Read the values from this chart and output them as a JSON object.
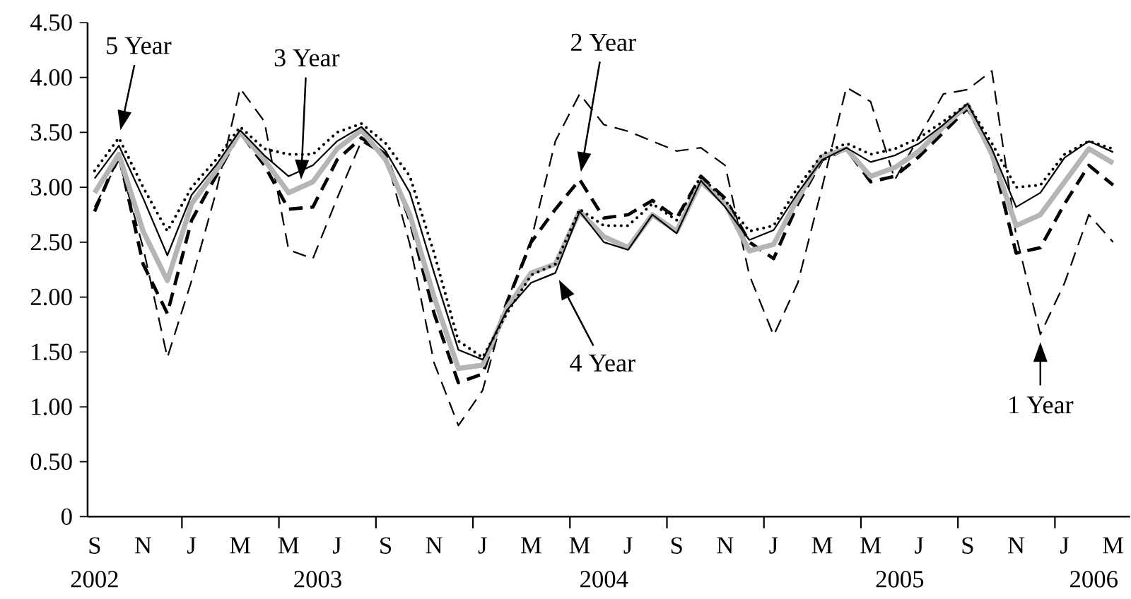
{
  "chart_data": {
    "type": "line",
    "categories": [
      "S",
      null,
      "N",
      null,
      "J",
      null,
      "M",
      null,
      "M",
      null,
      "J",
      null,
      "S",
      null,
      "N",
      null,
      "J",
      null,
      "M",
      null,
      "M",
      null,
      "J",
      null,
      "S",
      null,
      "N",
      null,
      "J",
      null,
      "M",
      null,
      "M",
      null,
      "J",
      null,
      "S",
      null,
      "N",
      null,
      "J",
      null,
      "M"
    ],
    "annotations": [
      "2002",
      "2003",
      "2004",
      "2005",
      "2006",
      "1 Year",
      "2 Year",
      "3 Year",
      "4 Year",
      "5 Year"
    ],
    "series": [
      {
        "color": "#000000",
        "line_style": "dashed",
        "values": [
          2.82,
          3.25,
          2.45,
          1.45,
          2.15,
          2.95,
          3.9,
          3.6,
          2.43,
          2.35,
          2.9,
          3.42,
          3.29,
          2.48,
          1.4,
          0.83,
          1.15,
          1.96,
          2.52,
          3.42,
          3.85,
          3.57,
          3.51,
          3.42,
          3.33,
          3.36,
          3.2,
          2.2,
          1.65,
          2.13,
          3.0,
          3.91,
          3.78,
          3.07,
          3.46,
          3.85,
          3.89,
          4.06,
          2.56,
          1.66,
          2.13,
          2.75,
          2.5
        ]
      },
      {
        "color": "#000000",
        "line_style": "dashed",
        "values": [
          2.78,
          3.3,
          2.3,
          1.85,
          2.7,
          3.1,
          3.5,
          3.2,
          2.8,
          2.82,
          3.25,
          3.45,
          3.3,
          2.7,
          1.85,
          1.22,
          1.3,
          1.95,
          2.5,
          2.8,
          3.07,
          2.72,
          2.75,
          2.88,
          2.72,
          3.1,
          2.9,
          2.5,
          2.35,
          2.85,
          3.25,
          3.35,
          3.05,
          3.1,
          3.28,
          3.5,
          3.72,
          3.3,
          2.4,
          2.45,
          2.85,
          3.2,
          3.02
        ]
      },
      {
        "color": "#b5b5b5",
        "line_style": "solid",
        "values": [
          2.95,
          3.3,
          2.6,
          2.15,
          2.85,
          3.15,
          3.5,
          3.25,
          2.95,
          3.05,
          3.35,
          3.52,
          3.25,
          2.75,
          2.0,
          1.35,
          1.38,
          1.9,
          2.22,
          2.3,
          2.78,
          2.55,
          2.45,
          2.75,
          2.6,
          3.05,
          2.85,
          2.42,
          2.48,
          2.9,
          3.28,
          3.35,
          3.1,
          3.18,
          3.33,
          3.55,
          3.75,
          3.3,
          2.65,
          2.75,
          3.05,
          3.35,
          3.22
        ]
      },
      {
        "color": "#000000",
        "line_style": "solid",
        "values": [
          3.08,
          3.38,
          2.9,
          2.38,
          2.93,
          3.2,
          3.52,
          3.29,
          3.1,
          3.2,
          3.42,
          3.55,
          3.33,
          2.95,
          2.22,
          1.52,
          1.43,
          1.88,
          2.13,
          2.22,
          2.78,
          2.5,
          2.43,
          2.75,
          2.58,
          3.06,
          2.82,
          2.52,
          2.61,
          2.95,
          3.25,
          3.36,
          3.23,
          3.29,
          3.4,
          3.57,
          3.76,
          3.35,
          2.82,
          2.95,
          3.27,
          3.42,
          3.32
        ]
      },
      {
        "color": "#000000",
        "line_style": "dotted",
        "values": [
          3.15,
          3.45,
          3.0,
          2.6,
          3.0,
          3.25,
          3.55,
          3.35,
          3.3,
          3.3,
          3.5,
          3.58,
          3.4,
          3.1,
          2.4,
          1.6,
          1.45,
          1.85,
          2.2,
          2.3,
          2.8,
          2.65,
          2.65,
          2.85,
          2.7,
          3.1,
          2.88,
          2.6,
          2.65,
          3.0,
          3.3,
          3.4,
          3.3,
          3.35,
          3.45,
          3.6,
          3.76,
          3.4,
          3.0,
          3.02,
          3.3,
          3.42,
          3.35
        ]
      }
    ],
    "ylim": [
      0,
      4.5
    ],
    "yticks": [
      0,
      {
        "value": 0.5,
        "label": "0.50"
      },
      {
        "value": 1,
        "label": "1.00"
      },
      {
        "value": 1.5,
        "label": "1.50"
      },
      {
        "value": 2,
        "label": "2.00"
      },
      {
        "value": 2.5,
        "label": "2.50"
      },
      {
        "value": 3,
        "label": "3.00"
      },
      {
        "value": 3.5,
        "label": "3.50"
      },
      {
        "value": 4,
        "label": "4.00"
      },
      {
        "value": 4.5,
        "label": "4.50"
      }
    ],
    "grid": false,
    "marker": "none"
  }
}
